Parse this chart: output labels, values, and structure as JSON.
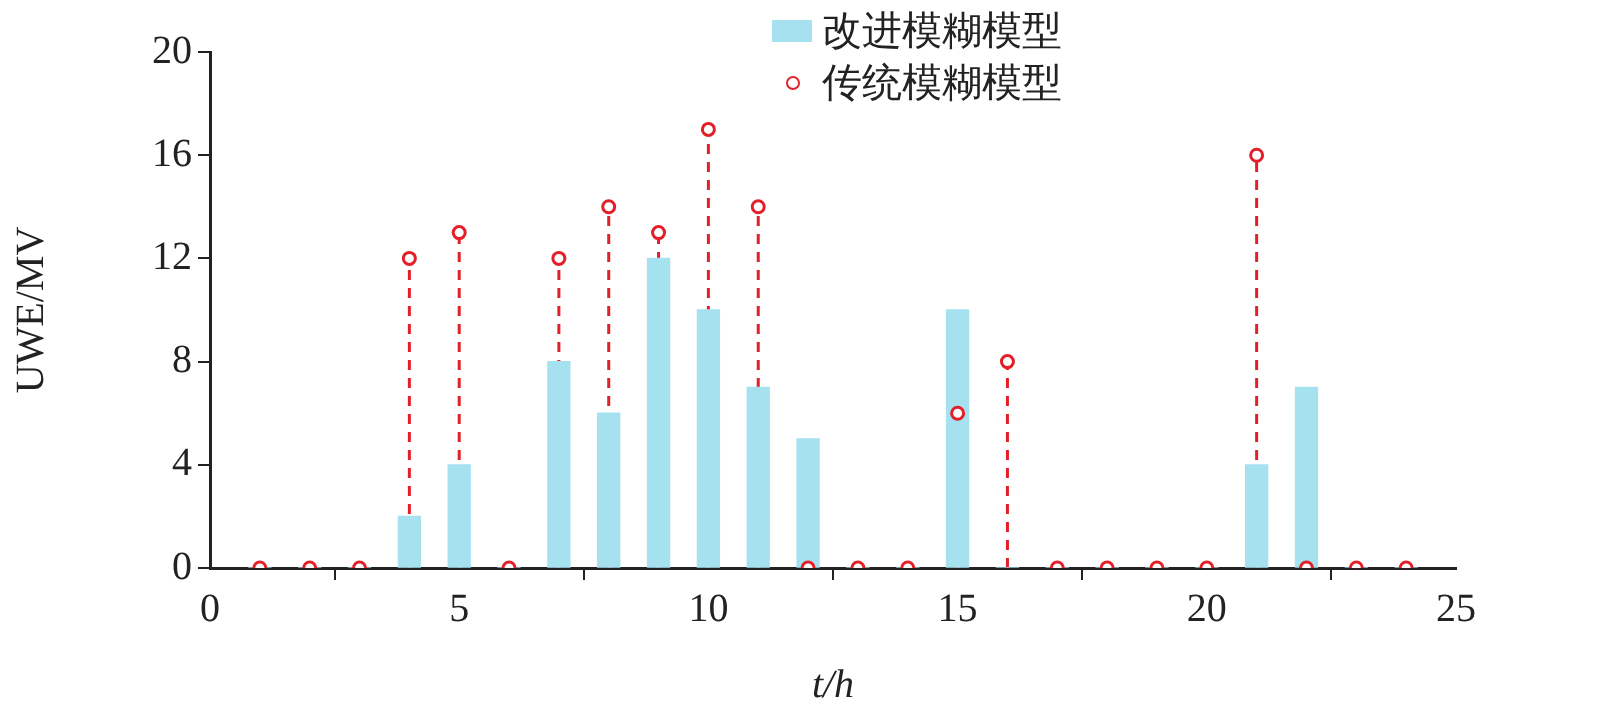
{
  "chart_data": {
    "type": "bar",
    "xlabel": "t/h",
    "ylabel": "UWE/MV",
    "x": [
      1,
      2,
      3,
      4,
      5,
      6,
      7,
      8,
      9,
      10,
      11,
      12,
      13,
      14,
      15,
      16,
      17,
      18,
      19,
      20,
      21,
      22,
      23,
      24
    ],
    "series": [
      {
        "name": "改进模糊模型",
        "color": "#a6e1f0",
        "values": [
          0,
          0,
          0,
          2,
          4,
          0,
          8,
          6,
          12,
          10,
          7,
          5,
          0,
          0,
          10,
          0,
          0,
          0,
          0,
          0,
          4,
          7,
          0,
          0
        ]
      },
      {
        "name": "传统模糊模型",
        "type": "lollipop",
        "color": "#e3202a",
        "values": [
          0,
          0,
          0,
          12,
          13,
          0,
          12,
          14,
          13,
          17,
          14,
          0,
          0,
          0,
          6,
          8,
          0,
          0,
          0,
          0,
          16,
          0,
          0,
          0
        ]
      }
    ],
    "xlim": [
      0,
      25
    ],
    "xticks": [
      0,
      5,
      10,
      15,
      20,
      25
    ],
    "ylim": [
      0,
      20
    ],
    "yticks": [
      0,
      4,
      8,
      12,
      16,
      20
    ],
    "grid": false,
    "legend": "top right",
    "marker": "circle",
    "line_style": "dashed"
  }
}
